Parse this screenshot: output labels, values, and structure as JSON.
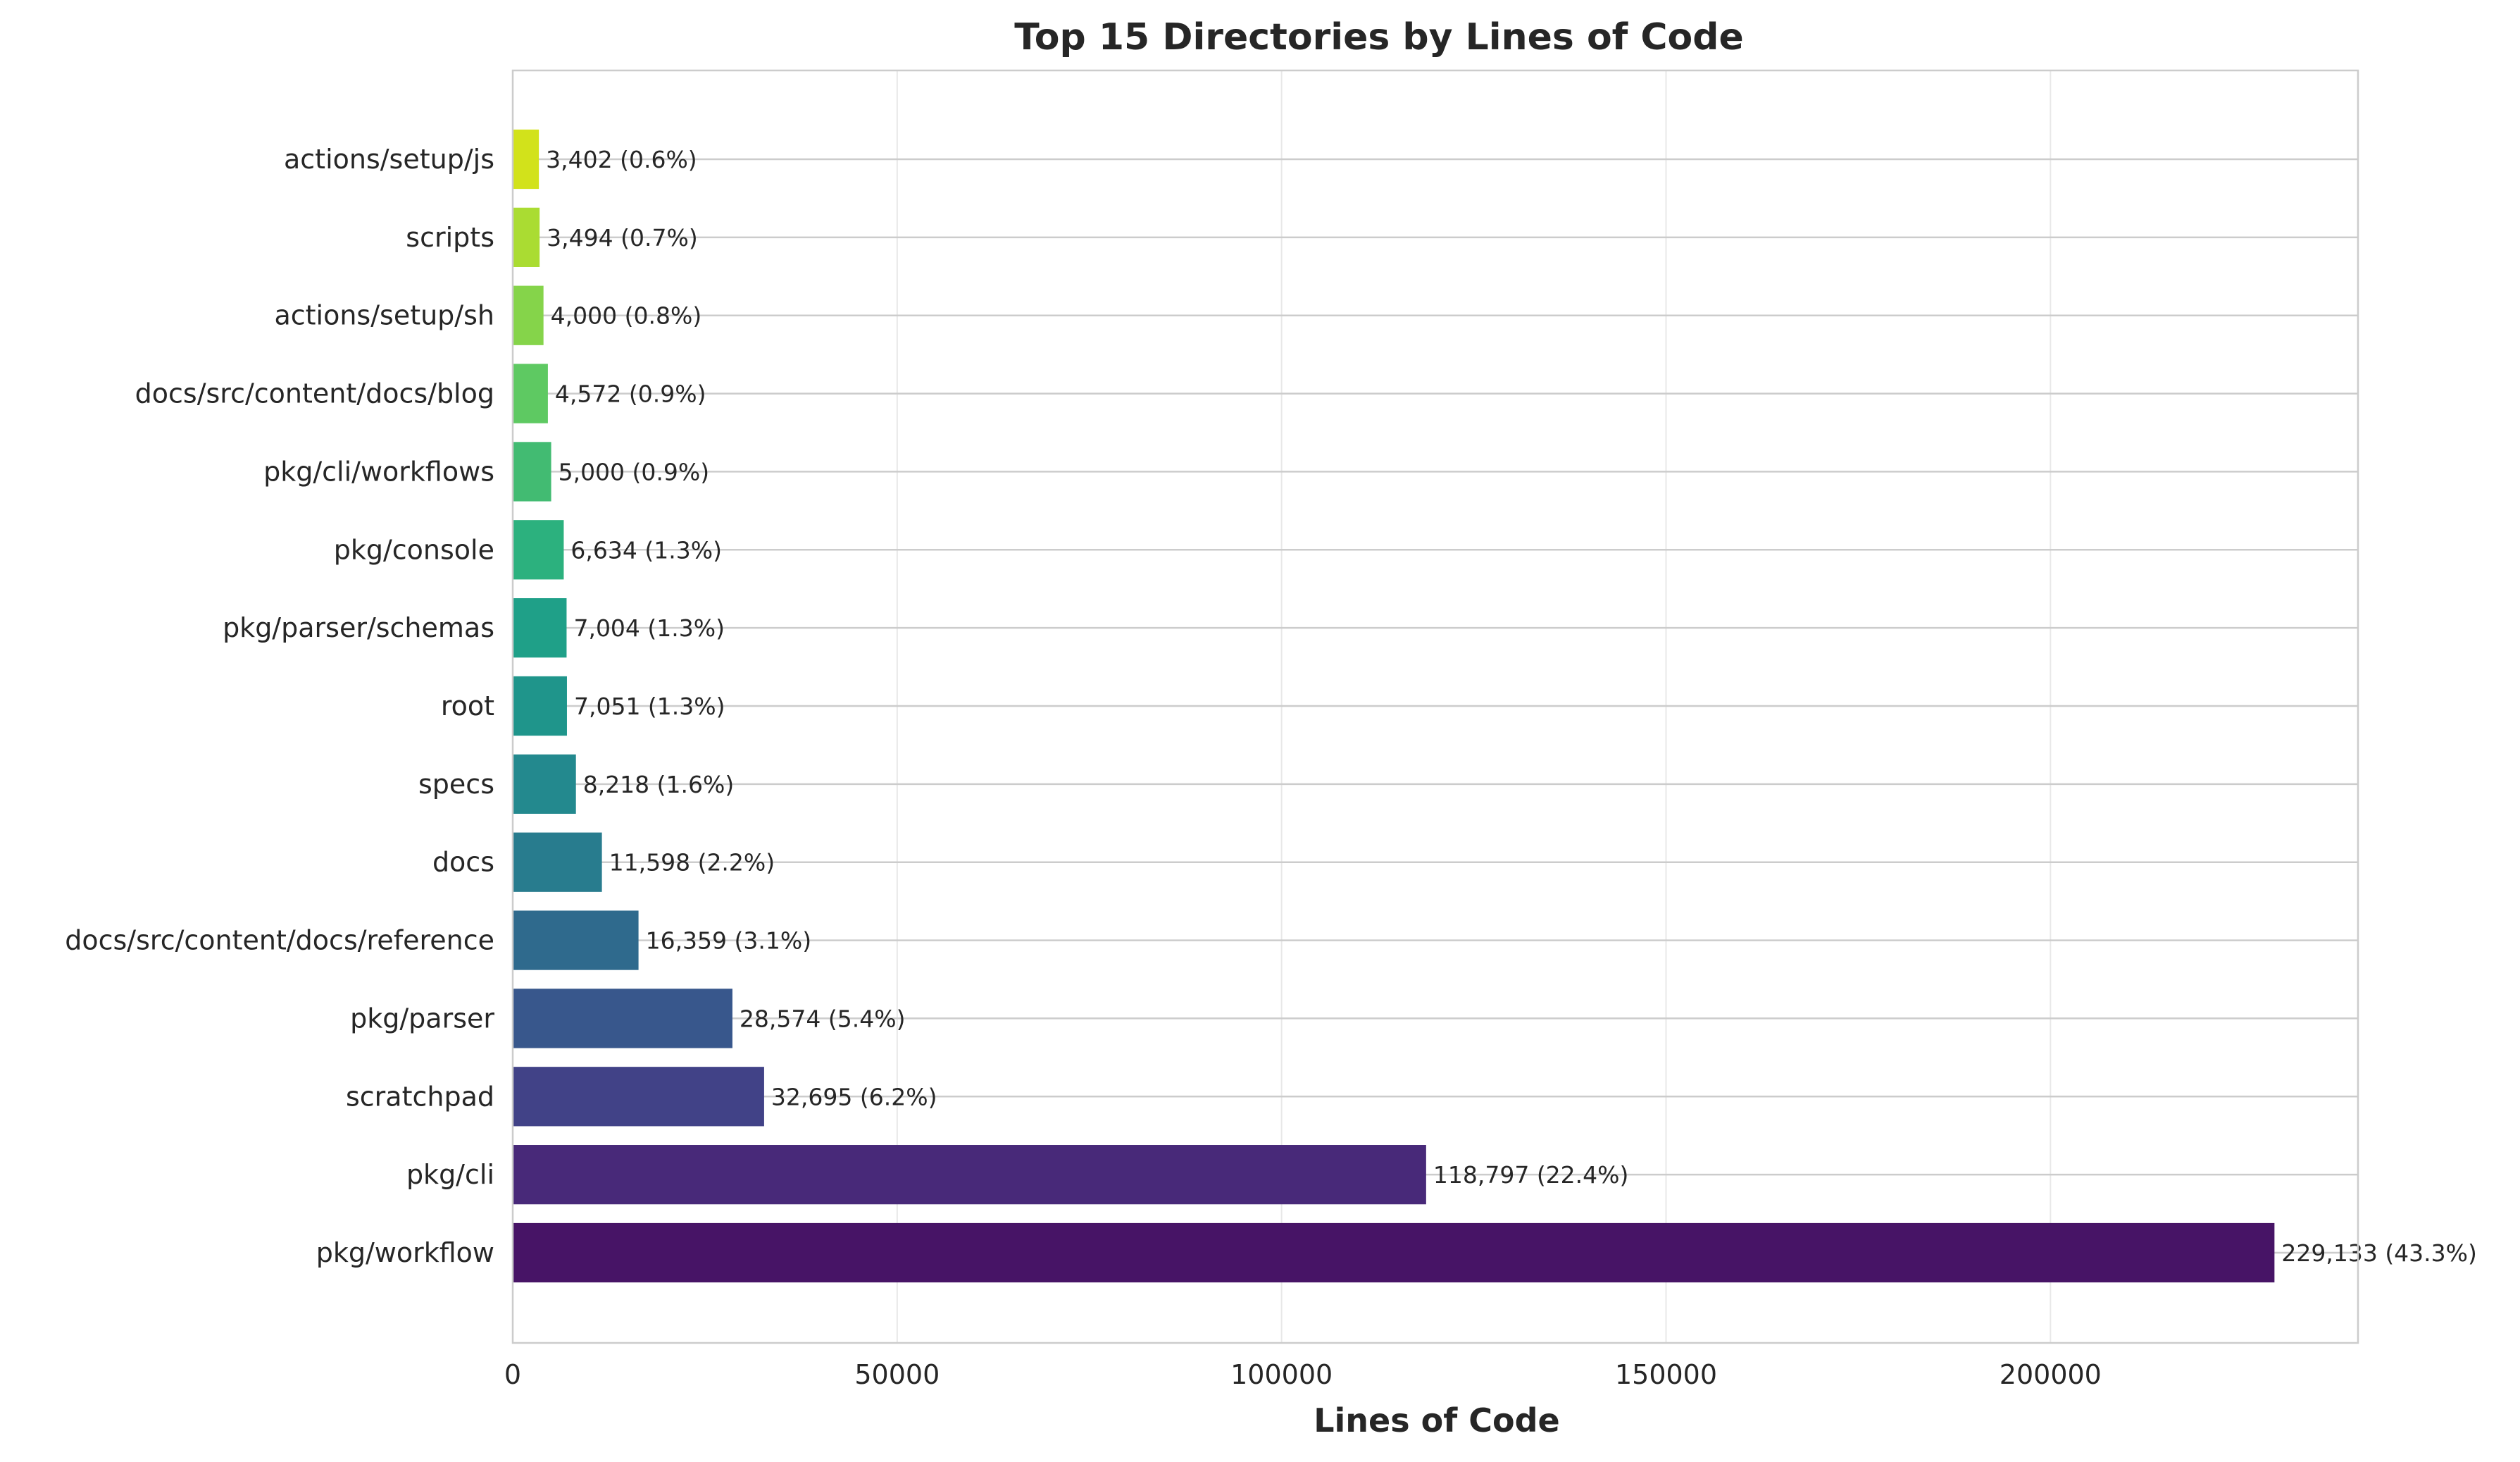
{
  "chart_data": {
    "type": "bar",
    "orientation": "horizontal",
    "title": "Top 15 Directories by Lines of Code",
    "xlabel": "Lines of Code",
    "ylabel": "",
    "xlim": [
      0,
      240000
    ],
    "xticks": [
      0,
      50000,
      100000,
      150000,
      200000
    ],
    "xtick_labels": [
      "0",
      "50000",
      "100000",
      "150000",
      "200000"
    ],
    "grid": true,
    "categories": [
      "pkg/workflow",
      "pkg/cli",
      "scratchpad",
      "pkg/parser",
      "docs/src/content/docs/reference",
      "docs",
      "specs",
      "root",
      "pkg/parser/schemas",
      "pkg/console",
      "pkg/cli/workflows",
      "docs/src/content/docs/blog",
      "actions/setup/sh",
      "scripts",
      "actions/setup/js"
    ],
    "values": [
      229133,
      118797,
      32695,
      28574,
      16359,
      11598,
      8218,
      7051,
      7004,
      6634,
      5000,
      4572,
      4000,
      3494,
      3402
    ],
    "data_labels": [
      "229,133 (43.3%)",
      "118,797 (22.4%)",
      "32,695 (6.2%)",
      "28,574 (5.4%)",
      "16,359 (3.1%)",
      "11,598 (2.2%)",
      "8,218 (1.6%)",
      "7,051 (1.3%)",
      "7,004 (1.3%)",
      "6,634 (1.3%)",
      "5,000 (0.9%)",
      "4,572 (0.9%)",
      "4,000 (0.8%)",
      "3,494 (0.7%)",
      "3,402 (0.6%)"
    ],
    "colors": [
      "#471466",
      "#482979",
      "#414287",
      "#38578c",
      "#2f6a8d",
      "#287c8e",
      "#23898e",
      "#1f958b",
      "#1fa088",
      "#2cb17e",
      "#42bb72",
      "#5ec962",
      "#85d44a",
      "#aadc32",
      "#d2e21b"
    ]
  }
}
